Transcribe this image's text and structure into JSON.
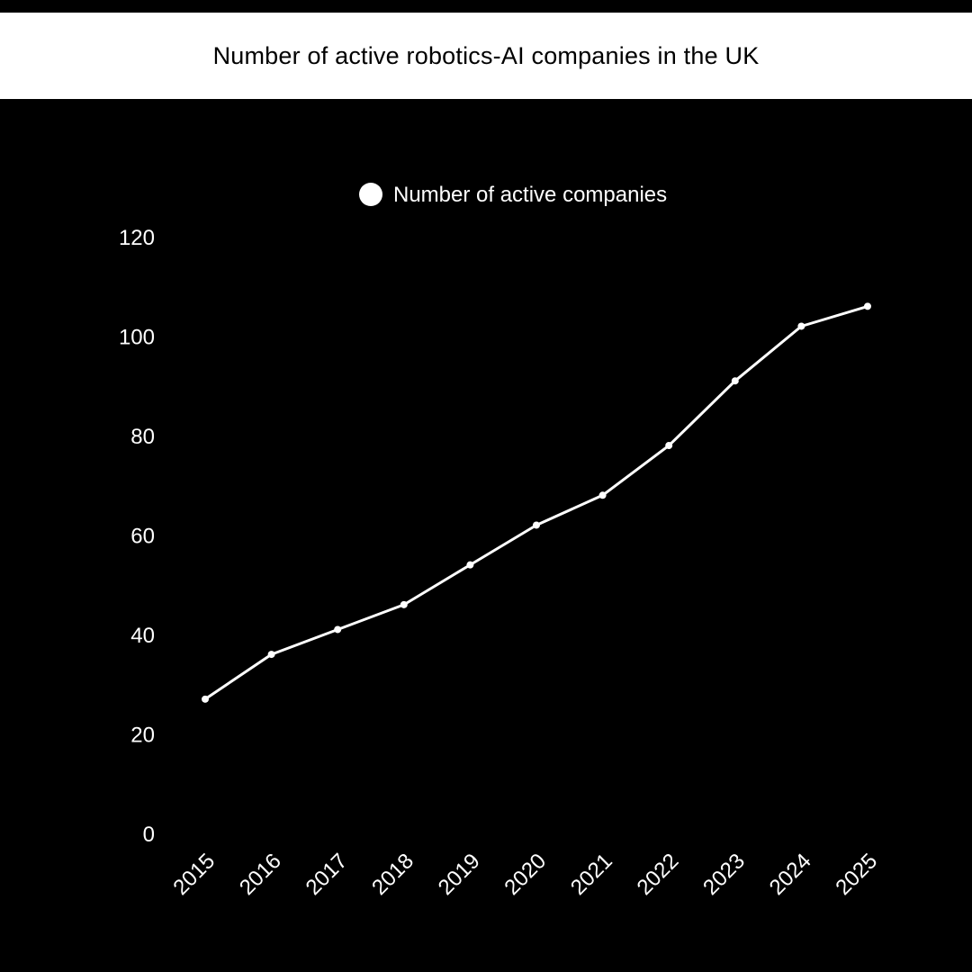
{
  "title": "Number of active robotics-AI companies in the UK",
  "colors": {
    "background": "#000000",
    "title_bar": "#ffffff",
    "title_text": "#000000",
    "series": "#ffffff"
  },
  "chart_data": {
    "type": "line",
    "title": "Number of active robotics-AI companies in the UK",
    "xlabel": "",
    "ylabel": "",
    "x": [
      "2015",
      "2016",
      "2017",
      "2018",
      "2019",
      "2020",
      "2021",
      "2022",
      "2023",
      "2024",
      "2025"
    ],
    "series": [
      {
        "name": "Number of active companies",
        "values": [
          27,
          36,
          41,
          46,
          54,
          62,
          68,
          78,
          91,
          102,
          106
        ]
      }
    ],
    "ylim": [
      0,
      120
    ],
    "yticks": [
      0,
      20,
      40,
      60,
      80,
      100,
      120
    ],
    "grid": false,
    "legend": "top-center"
  }
}
